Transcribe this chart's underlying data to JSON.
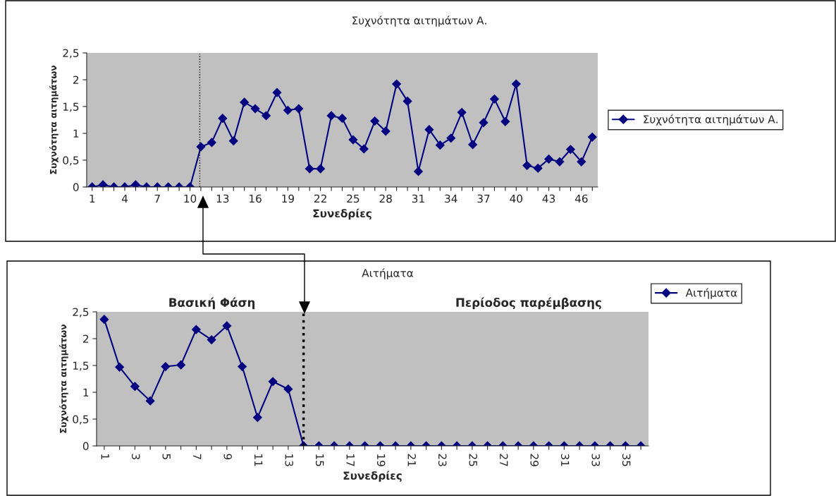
{
  "chart_data": [
    {
      "type": "line",
      "title": "Συχνότητα αιτημάτων Α.",
      "xlabel": "Συνεδρίες",
      "ylabel": "Συχνότητα αιτημάτων",
      "x": [
        1,
        2,
        3,
        4,
        5,
        6,
        7,
        8,
        9,
        10,
        11,
        12,
        13,
        14,
        15,
        16,
        17,
        18,
        19,
        20,
        21,
        22,
        23,
        24,
        25,
        26,
        27,
        28,
        29,
        30,
        31,
        32,
        33,
        34,
        35,
        36,
        37,
        38,
        39,
        40,
        41,
        42,
        43,
        44,
        45,
        46,
        47
      ],
      "series": [
        {
          "name": "Συχνότητα αιτημάτων Α.",
          "color": "#000080",
          "values": [
            0,
            0.04,
            0,
            0,
            0.04,
            0,
            0,
            0,
            0,
            0,
            0.75,
            0.83,
            1.28,
            0.86,
            1.58,
            1.46,
            1.33,
            1.76,
            1.43,
            1.46,
            0.34,
            0.34,
            1.33,
            1.28,
            0.88,
            0.71,
            1.23,
            1.04,
            1.92,
            1.6,
            0.29,
            1.07,
            0.78,
            0.91,
            1.39,
            0.79,
            1.2,
            1.64,
            1.22,
            1.92,
            0.4,
            0.35,
            0.52,
            0.47,
            0.7,
            0.47,
            0.93
          ]
        }
      ],
      "xlim": [
        0.5,
        47.5
      ],
      "xticks": [
        1,
        {
          "value": 2,
          "label": null
        },
        {
          "value": 3,
          "label": null
        },
        4,
        {
          "value": 5,
          "label": null
        },
        {
          "value": 6,
          "label": null
        },
        7,
        {
          "value": 8,
          "label": null
        },
        {
          "value": 9,
          "label": null
        },
        10,
        {
          "value": 11,
          "label": null
        },
        {
          "value": 12,
          "label": null
        },
        13,
        {
          "value": 14,
          "label": null
        },
        {
          "value": 15,
          "label": null
        },
        16,
        {
          "value": 17,
          "label": null
        },
        {
          "value": 18,
          "label": null
        },
        19,
        {
          "value": 20,
          "label": null
        },
        {
          "value": 21,
          "label": null
        },
        22,
        {
          "value": 23,
          "label": null
        },
        {
          "value": 24,
          "label": null
        },
        25,
        {
          "value": 26,
          "label": null
        },
        {
          "value": 27,
          "label": null
        },
        28,
        {
          "value": 29,
          "label": null
        },
        {
          "value": 30,
          "label": null
        },
        31,
        {
          "value": 32,
          "label": null
        },
        {
          "value": 33,
          "label": null
        },
        34,
        {
          "value": 35,
          "label": null
        },
        {
          "value": 36,
          "label": null
        },
        37,
        {
          "value": 38,
          "label": null
        },
        {
          "value": 39,
          "label": null
        },
        40,
        {
          "value": 41,
          "label": null
        },
        {
          "value": 42,
          "label": null
        },
        43,
        {
          "value": 44,
          "label": null
        },
        {
          "value": 45,
          "label": null
        },
        46,
        {
          "value": 47,
          "label": null
        }
      ],
      "ylim": [
        0,
        2.5
      ],
      "yticks": [
        0,
        {
          "value": 0.5,
          "label": "0,5"
        },
        1,
        {
          "value": 1.5,
          "label": "1,5"
        },
        2,
        {
          "value": 2.5,
          "label": "2,5"
        }
      ],
      "ref_lines": [
        {
          "axis": "x",
          "value": 10.9,
          "color": "#000000",
          "line_style": "dotted"
        }
      ],
      "marker": "diamond",
      "line_style": "solid",
      "grid": false,
      "legend": "right"
    },
    {
      "type": "line",
      "title": "Αιτήματα",
      "xlabel": "Συνεδρίες",
      "ylabel": "Συχνότητα αιτημάτων",
      "x": [
        1,
        2,
        3,
        4,
        5,
        6,
        7,
        8,
        9,
        10,
        11,
        12,
        13,
        14,
        15,
        16,
        17,
        18,
        19,
        20,
        21,
        22,
        23,
        24,
        25,
        26,
        27,
        28,
        29,
        30,
        31,
        32,
        33,
        34,
        35,
        36
      ],
      "series": [
        {
          "name": "Αιτήματα",
          "color": "#000080",
          "values": [
            2.36,
            1.47,
            1.11,
            0.84,
            1.48,
            1.51,
            2.17,
            1.98,
            2.24,
            1.48,
            0.53,
            1.2,
            1.06,
            0,
            0,
            0,
            0,
            0,
            0,
            0,
            0,
            0,
            0,
            0,
            0,
            0,
            0,
            0,
            0,
            0,
            0,
            0,
            0,
            0,
            0,
            0
          ]
        }
      ],
      "xlim": [
        0.5,
        36.5
      ],
      "xticks": [
        1,
        {
          "value": 2,
          "label": null
        },
        3,
        {
          "value": 4,
          "label": null
        },
        5,
        {
          "value": 6,
          "label": null
        },
        7,
        {
          "value": 8,
          "label": null
        },
        9,
        {
          "value": 10,
          "label": null
        },
        11,
        {
          "value": 12,
          "label": null
        },
        13,
        {
          "value": 14,
          "label": null
        },
        15,
        {
          "value": 16,
          "label": null
        },
        17,
        {
          "value": 18,
          "label": null
        },
        19,
        {
          "value": 20,
          "label": null
        },
        21,
        {
          "value": 22,
          "label": null
        },
        23,
        {
          "value": 24,
          "label": null
        },
        25,
        {
          "value": 26,
          "label": null
        },
        27,
        {
          "value": 28,
          "label": null
        },
        29,
        {
          "value": 30,
          "label": null
        },
        31,
        {
          "value": 32,
          "label": null
        },
        33,
        {
          "value": 34,
          "label": null
        },
        35,
        {
          "value": 36,
          "label": null
        }
      ],
      "ylim": [
        0,
        2.5
      ],
      "yticks": [
        0,
        {
          "value": 0.5,
          "label": "0,5"
        },
        1,
        {
          "value": 1.5,
          "label": "1,5"
        },
        2,
        {
          "value": 2.5,
          "label": "2,5"
        }
      ],
      "ref_lines": [
        {
          "axis": "x",
          "value": 14,
          "color": "#000000",
          "line_style": "dotted"
        }
      ],
      "annotations": [
        "Βασική Φάση",
        "Περίοδος παρέμβασης"
      ],
      "marker": "diamond",
      "line_style": "solid",
      "grid": false,
      "legend": "top right"
    }
  ]
}
